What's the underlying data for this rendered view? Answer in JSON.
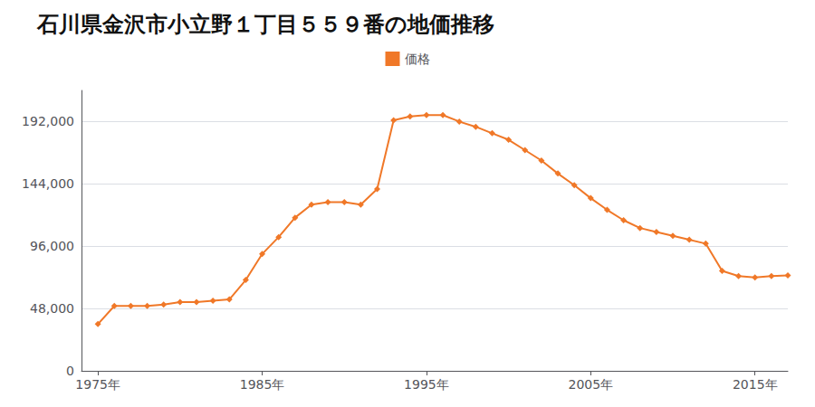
{
  "chart_data": {
    "type": "line",
    "title": "石川県金沢市小立野１丁目５５９番の地価推移",
    "x": [
      1975,
      1976,
      1977,
      1978,
      1979,
      1980,
      1981,
      1982,
      1983,
      1984,
      1985,
      1986,
      1987,
      1988,
      1989,
      1990,
      1991,
      1992,
      1993,
      1994,
      1995,
      1996,
      1997,
      1998,
      1999,
      2000,
      2001,
      2002,
      2003,
      2004,
      2005,
      2006,
      2007,
      2008,
      2009,
      2010,
      2011,
      2012,
      2013,
      2014,
      2015,
      2016,
      2017
    ],
    "series": [
      {
        "name": "価格",
        "color": "#f07828",
        "marker": "diamond",
        "values": [
          36000,
          50000,
          50000,
          50000,
          51000,
          53000,
          53000,
          54000,
          55000,
          70000,
          90000,
          103000,
          118000,
          128000,
          130000,
          130000,
          128000,
          140000,
          193000,
          196000,
          197000,
          197000,
          192000,
          188000,
          183000,
          178000,
          170000,
          162000,
          152000,
          143000,
          133000,
          124000,
          116000,
          110000,
          107000,
          104000,
          101000,
          98000,
          77000,
          73000,
          72000,
          73000,
          73500
        ]
      }
    ],
    "xlim": [
      1974,
      2017
    ],
    "xticks": [
      {
        "value": 1975,
        "label": "1975年"
      },
      {
        "value": 1985,
        "label": "1985年"
      },
      {
        "value": 1995,
        "label": "1995年"
      },
      {
        "value": 2005,
        "label": "2005年"
      },
      {
        "value": 2015,
        "label": "2015年"
      }
    ],
    "ylim": [
      0,
      216000
    ],
    "yticks": [
      0,
      {
        "value": 48000,
        "label": "48,000"
      },
      {
        "value": 96000,
        "label": "96,000"
      },
      {
        "value": 144000,
        "label": "144,000"
      },
      {
        "value": 192000,
        "label": "192,000"
      }
    ],
    "grid": true,
    "legend": "top"
  }
}
